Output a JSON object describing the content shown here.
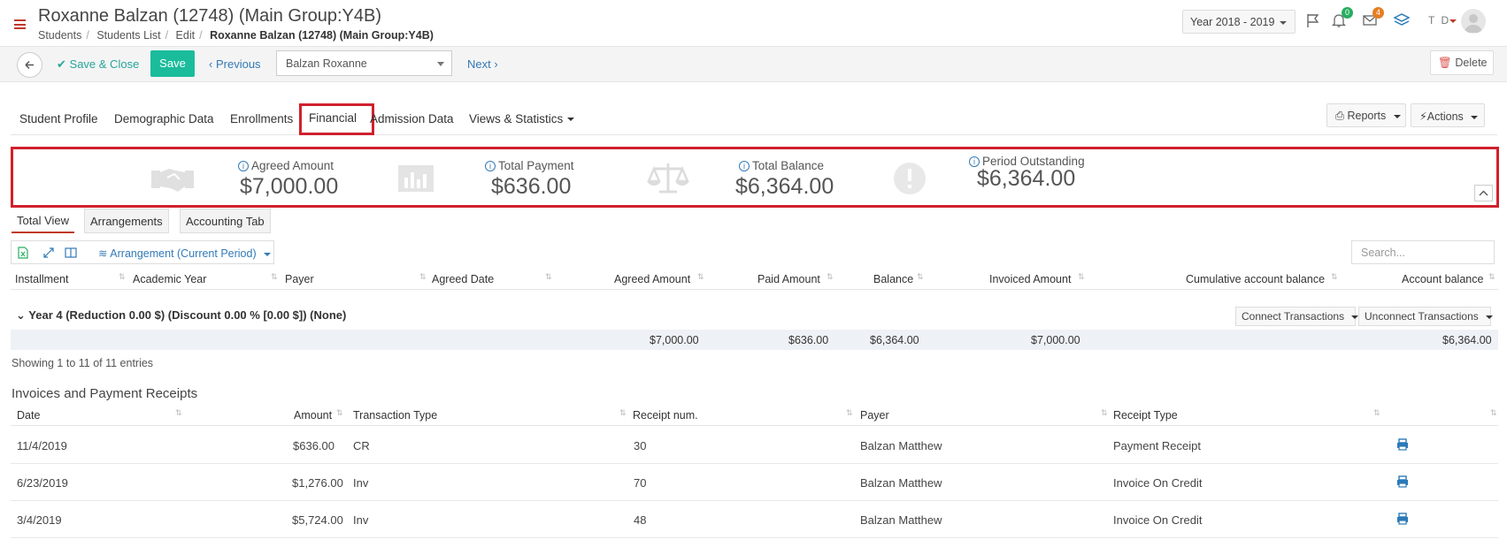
{
  "header": {
    "title": "Roxanne Balzan (12748) (Main Group:Y4B)",
    "breadcrumb": [
      "Students",
      "Students List",
      "Edit",
      "Roxanne Balzan (12748) (Main Group:Y4B)"
    ],
    "year": "Year 2018 - 2019",
    "notifications_count": "0",
    "messages_count": "4",
    "user_initials": "T D"
  },
  "toolbar": {
    "save_close": "Save & Close",
    "save": "Save",
    "previous": "Previous",
    "student_select": "Balzan Roxanne",
    "next": "Next",
    "delete": "Delete"
  },
  "tabs": [
    "Student Profile",
    "Demographic Data",
    "Enrollments",
    "Financial",
    "Admission Data",
    "Views & Statistics"
  ],
  "tab_buttons": {
    "reports": "Reports",
    "actions": "Actions"
  },
  "summary": {
    "agreed_label": "Agreed Amount",
    "agreed_value": "$7,000.00",
    "payment_label": "Total Payment",
    "payment_value": "$636.00",
    "balance_label": "Total Balance",
    "balance_value": "$6,364.00",
    "outstanding_label": "Period Outstanding",
    "outstanding_value": "$6,364.00"
  },
  "subtabs": [
    "Total View",
    "Arrangements",
    "Accounting Tab"
  ],
  "table_tools": {
    "arrangement": "Arrangement (Current Period)",
    "search_placeholder": "Search..."
  },
  "columns": [
    "Installment",
    "Academic Year",
    "Payer",
    "Agreed Date",
    "Agreed Amount",
    "Paid Amount",
    "Balance",
    "Invoiced Amount",
    "Cumulative account balance",
    "Account balance"
  ],
  "group": {
    "label": "Year 4 (Reduction 0.00 $) (Discount 0.00 % [0.00 $]) (None)",
    "connect": "Connect Transactions",
    "unconnect": "Unconnect Transactions",
    "totals": {
      "agreed": "$7,000.00",
      "paid": "$636.00",
      "balance": "$6,364.00",
      "invoiced": "$7,000.00",
      "account_balance": "$6,364.00"
    }
  },
  "showing": "Showing 1 to 11 of 11 entries",
  "invoices": {
    "title": "Invoices and Payment Receipts",
    "columns": [
      "Date",
      "Amount",
      "Transaction Type",
      "Receipt num.",
      "Payer",
      "Receipt Type"
    ],
    "rows": [
      {
        "date": "11/4/2019",
        "amount": "$636.00",
        "type": "CR",
        "receipt": "30",
        "payer": "Balzan Matthew",
        "receipt_type": "Payment Receipt"
      },
      {
        "date": "6/23/2019",
        "amount": "$1,276.00",
        "type": "Inv",
        "receipt": "70",
        "payer": "Balzan Matthew",
        "receipt_type": "Invoice On Credit"
      },
      {
        "date": "3/4/2019",
        "amount": "$5,724.00",
        "type": "Inv",
        "receipt": "48",
        "payer": "Balzan Matthew",
        "receipt_type": "Invoice On Credit"
      }
    ]
  },
  "colors": {
    "accent": "#d0202c",
    "link": "#337ab7",
    "save": "#1abc9c"
  }
}
